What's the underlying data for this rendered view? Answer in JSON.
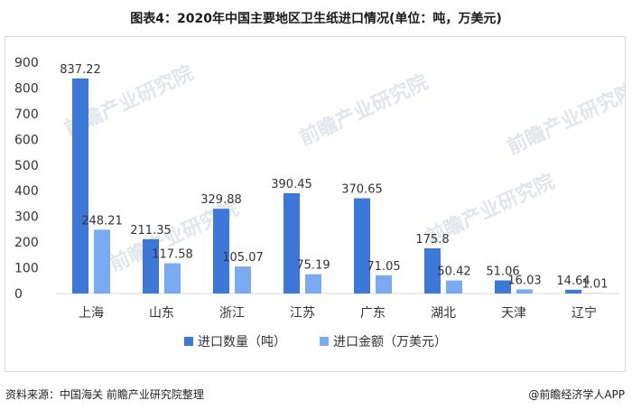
{
  "title": "图表4：2020年中国主要地区卫生纸进口情况(单位：吨，万美元)",
  "source": "资料来源：中国海关 前瞻产业研究院整理",
  "brand": "@前瞻经济学人APP",
  "watermark": "前瞻产业研究院",
  "colors": {
    "series1": "#3d78d8",
    "series2": "#7aaaf2",
    "axis": "#d9d9d9",
    "text": "#333333"
  },
  "chart_data": {
    "type": "bar",
    "categories": [
      "上海",
      "山东",
      "浙江",
      "江苏",
      "广东",
      "湖北",
      "天津",
      "辽宁"
    ],
    "series": [
      {
        "name": "进口数量（吨）",
        "values": [
          837.22,
          211.35,
          329.88,
          390.45,
          370.65,
          175.8,
          51.06,
          14.64
        ],
        "labels": [
          "837.22",
          "211.35",
          "329.88",
          "390.45",
          "370.65",
          "175.8",
          "51.06",
          "14.64"
        ]
      },
      {
        "name": "进口金额（万美元）",
        "values": [
          248.21,
          117.58,
          105.07,
          75.19,
          71.05,
          50.42,
          16.03,
          1.01
        ],
        "labels": [
          "248.21",
          "117.58",
          "105.07",
          "75.19",
          "71.05",
          "50.42",
          "16.03",
          "1.01"
        ]
      }
    ],
    "yticks": [
      "0",
      "100",
      "200",
      "300",
      "400",
      "500",
      "600",
      "700",
      "800",
      "900"
    ],
    "ylim": [
      0,
      900
    ],
    "grid": false,
    "legend": "bottom"
  }
}
